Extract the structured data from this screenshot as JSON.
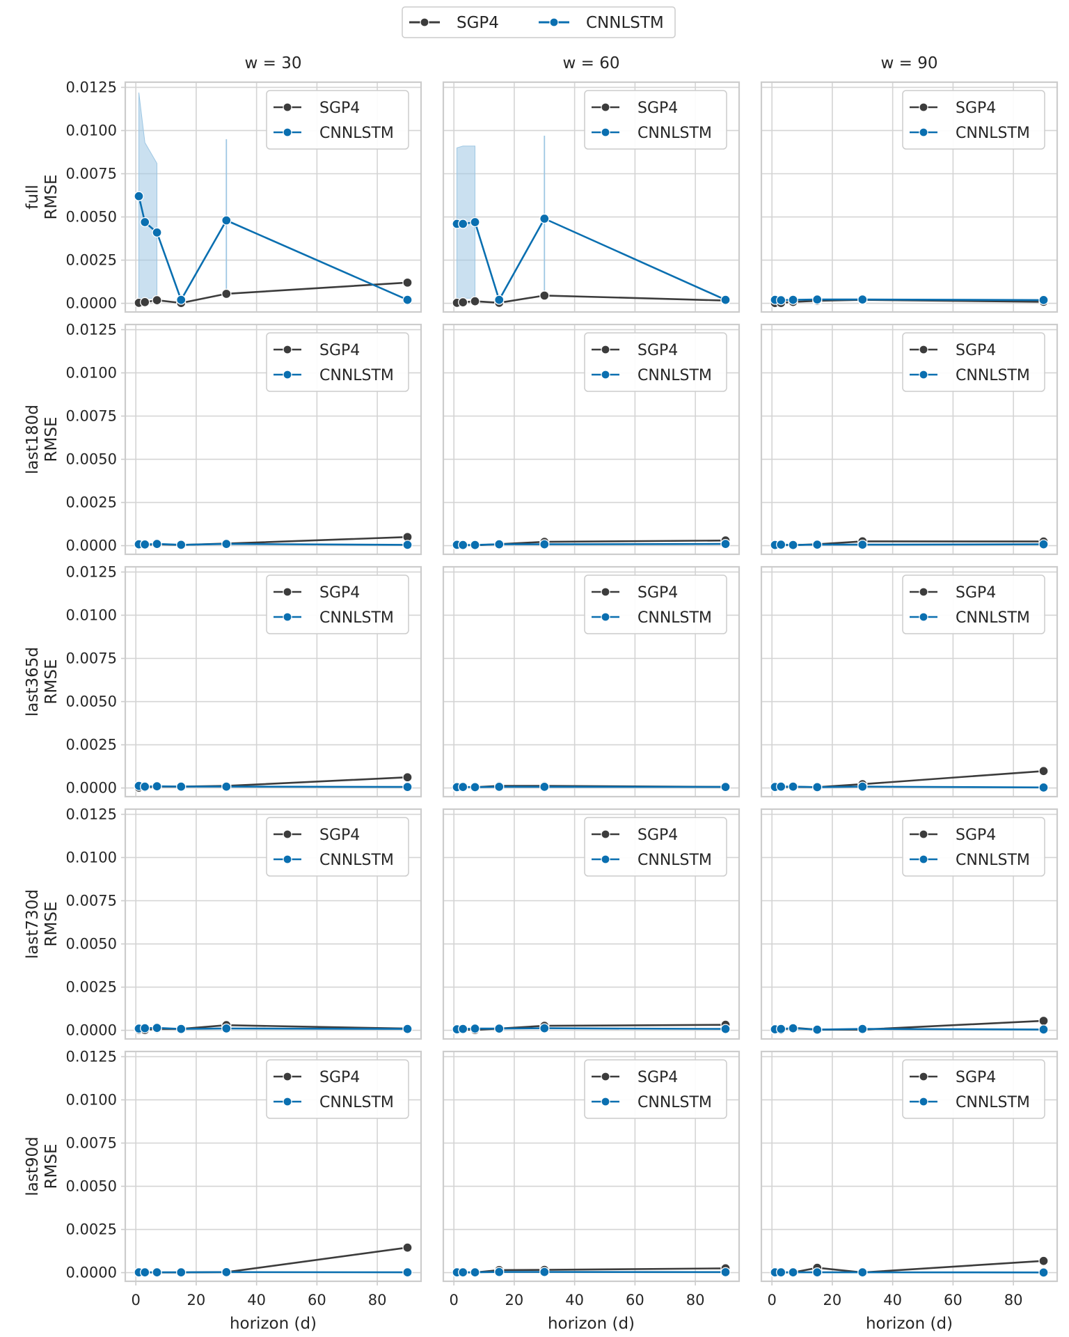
{
  "legend": {
    "entries": [
      {
        "label": "SGP4",
        "color": "#3c3c3c"
      },
      {
        "label": "CNNLSTM",
        "color": "#0a6fb0"
      }
    ]
  },
  "colors": {
    "sgp4": "#3c3c3c",
    "cnnlstm": "#0a6fb0",
    "band": "#9ec7e3",
    "grid": "#d4d4d4",
    "frame": "#cccccc"
  },
  "chart_data": {
    "type": "line",
    "layout": "facet-grid",
    "x": [
      1,
      3,
      7,
      15,
      30,
      90
    ],
    "xlabel": "horizon (d)",
    "xticks": [
      0,
      20,
      40,
      60,
      80
    ],
    "xlim": [
      -3.5,
      94.5
    ],
    "ylim": [
      -0.0005,
      0.0128
    ],
    "yticks": [
      "0.0000",
      "0.0025",
      "0.0050",
      "0.0075",
      "0.0100",
      "0.0125"
    ],
    "ylabel_suffix": "RMSE",
    "grid": true,
    "legend_position": "upper-right of each panel and top-center of figure",
    "column_titles": [
      "w = 30",
      "w = 60",
      "w = 90"
    ],
    "row_labels": [
      "full",
      "last180d",
      "last365d",
      "last730d",
      "last90d"
    ],
    "panels": [
      [
        {
          "series": [
            {
              "name": "SGP4",
              "values": [
                3e-05,
                7e-05,
                0.00018,
                2e-05,
                0.00055,
                0.0012
              ]
            },
            {
              "name": "CNNLSTM",
              "values": [
                0.0062,
                0.0047,
                0.0041,
                0.0002,
                0.0048,
                0.0002
              ],
              "band": [
                [
                  0.0003,
                  0.0122
                ],
                [
                  0.0003,
                  0.0093
                ],
                [
                  0.0003,
                  0.0081
                ]
              ],
              "spike": {
                "x": 30,
                "low": 0.0003,
                "high": 0.0095
              }
            }
          ]
        },
        {
          "series": [
            {
              "name": "SGP4",
              "values": [
                3e-05,
                6e-05,
                0.00012,
                3e-05,
                0.00045,
                0.00016
              ]
            },
            {
              "name": "CNNLSTM",
              "values": [
                0.0046,
                0.0046,
                0.0047,
                0.0002,
                0.0049,
                0.0002
              ],
              "band": [
                [
                  0.0003,
                  0.009
                ],
                [
                  0.0003,
                  0.0091
                ],
                [
                  0.0003,
                  0.0091
                ]
              ],
              "spike": {
                "x": 30,
                "low": 0.0003,
                "high": 0.0097
              }
            }
          ]
        },
        {
          "series": [
            {
              "name": "SGP4",
              "values": [
                2e-05,
                2e-05,
                8e-05,
                0.00015,
                0.0002,
                9e-05
              ]
            },
            {
              "name": "CNNLSTM",
              "values": [
                0.0002,
                0.00018,
                0.0002,
                0.00022,
                0.00022,
                0.00019
              ]
            }
          ]
        }
      ],
      [
        {
          "series": [
            {
              "name": "SGP4",
              "values": [
                3e-05,
                4e-05,
                8e-05,
                4e-05,
                0.00012,
                0.0005
              ]
            },
            {
              "name": "CNNLSTM",
              "values": [
                8e-05,
                7e-05,
                0.0001,
                5e-05,
                0.0001,
                5e-05
              ]
            }
          ]
        },
        {
          "series": [
            {
              "name": "SGP4",
              "values": [
                3e-05,
                3e-05,
                2e-05,
                9e-05,
                0.00022,
                0.0003
              ]
            },
            {
              "name": "CNNLSTM",
              "values": [
                5e-05,
                4e-05,
                4e-05,
                8e-05,
                8e-05,
                0.0001
              ]
            }
          ]
        },
        {
          "series": [
            {
              "name": "SGP4",
              "values": [
                2e-05,
                3e-05,
                3e-05,
                8e-05,
                0.00025,
                0.00024
              ]
            },
            {
              "name": "CNNLSTM",
              "values": [
                4e-05,
                6e-05,
                4e-05,
                6e-05,
                6e-05,
                8e-05
              ]
            }
          ]
        }
      ],
      [
        {
          "series": [
            {
              "name": "SGP4",
              "values": [
                2e-05,
                3e-05,
                9e-05,
                8e-05,
                0.00012,
                0.00062
              ]
            },
            {
              "name": "CNNLSTM",
              "values": [
                0.00012,
                8e-05,
                0.0001,
                8e-05,
                8e-05,
                6e-05
              ]
            }
          ]
        },
        {
          "series": [
            {
              "name": "SGP4",
              "values": [
                3e-05,
                6e-05,
                5e-05,
                0.00012,
                0.00012,
                6e-05
              ]
            },
            {
              "name": "CNNLSTM",
              "values": [
                5e-05,
                6e-05,
                5e-05,
                7e-05,
                7e-05,
                6e-05
              ]
            }
          ]
        },
        {
          "series": [
            {
              "name": "SGP4",
              "values": [
                3e-05,
                5e-05,
                7e-05,
                5e-05,
                0.00022,
                0.00098
              ]
            },
            {
              "name": "CNNLSTM",
              "values": [
                6e-05,
                8e-05,
                8e-05,
                5e-05,
                8e-05,
                3e-05
              ]
            }
          ]
        }
      ],
      [
        {
          "series": [
            {
              "name": "SGP4",
              "values": [
                3e-05,
                2e-05,
                9e-05,
                8e-05,
                0.0003,
                0.0001
              ]
            },
            {
              "name": "CNNLSTM",
              "values": [
                0.0001,
                0.00012,
                0.00014,
                8e-05,
                0.00011,
                8e-05
              ]
            }
          ]
        },
        {
          "series": [
            {
              "name": "SGP4",
              "values": [
                3e-05,
                4e-05,
                2e-05,
                0.0001,
                0.00026,
                0.00032
              ]
            },
            {
              "name": "CNNLSTM",
              "values": [
                6e-05,
                8e-05,
                0.0001,
                0.0001,
                0.00012,
                8e-05
              ]
            }
          ]
        },
        {
          "series": [
            {
              "name": "SGP4",
              "values": [
                3e-05,
                2e-05,
                0.00015,
                4e-05,
                4e-05,
                0.00055
              ]
            },
            {
              "name": "CNNLSTM",
              "values": [
                6e-05,
                8e-05,
                0.00012,
                4e-05,
                8e-05,
                5e-05
              ]
            }
          ]
        }
      ],
      [
        {
          "series": [
            {
              "name": "SGP4",
              "values": [
                1e-05,
                1e-05,
                1e-05,
                1e-05,
                3e-05,
                0.00145
              ]
            },
            {
              "name": "CNNLSTM",
              "values": [
                2e-05,
                2e-05,
                2e-05,
                2e-05,
                3e-05,
                2e-05
              ]
            }
          ]
        },
        {
          "series": [
            {
              "name": "SGP4",
              "values": [
                1e-05,
                1e-05,
                1e-05,
                0.00015,
                0.00016,
                0.00025
              ]
            },
            {
              "name": "CNNLSTM",
              "values": [
                2e-05,
                2e-05,
                2e-05,
                4e-05,
                4e-05,
                3e-05
              ]
            }
          ]
        },
        {
          "series": [
            {
              "name": "SGP4",
              "values": [
                1e-05,
                1e-05,
                1e-05,
                0.00028,
                1e-05,
                0.00068
              ]
            },
            {
              "name": "CNNLSTM",
              "values": [
                2e-05,
                2e-05,
                2e-05,
                2e-05,
                2e-05,
                1e-05
              ]
            }
          ]
        }
      ]
    ]
  }
}
